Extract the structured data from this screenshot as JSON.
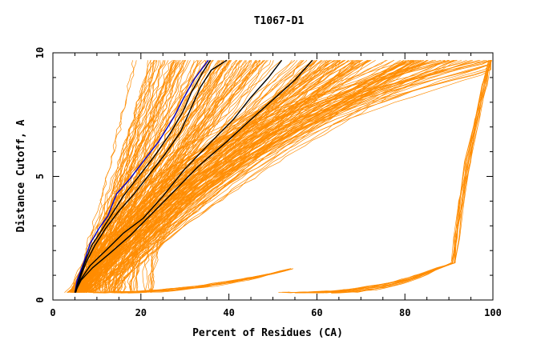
{
  "chart_data": {
    "type": "line",
    "title": "T1067-D1",
    "xlabel": "Percent of Residues (CA)",
    "ylabel": "Distance Cutoff, A",
    "xlim": [
      0,
      100
    ],
    "ylim": [
      0,
      10
    ],
    "x_ticks": [
      "0",
      "20",
      "40",
      "60",
      "80",
      "100"
    ],
    "y_ticks": [
      "0",
      "5",
      "10"
    ],
    "grid": false,
    "legend": "none",
    "colors": {
      "orange": "#ff8c00",
      "black": "#000000",
      "blue": "#0000cc"
    },
    "highlight_series": [
      {
        "color": "#0000cc",
        "points": [
          [
            5.0,
            0.3
          ],
          [
            5.5,
            0.8
          ],
          [
            7,
            1.5
          ],
          [
            8.5,
            2.3
          ],
          [
            10.5,
            2.9
          ],
          [
            12.5,
            3.4
          ],
          [
            14.5,
            4.3
          ],
          [
            17.5,
            4.9
          ],
          [
            20.5,
            5.6
          ],
          [
            24,
            6.4
          ],
          [
            27.5,
            7.4
          ],
          [
            29.5,
            8.1
          ],
          [
            32,
            8.9
          ],
          [
            35.3,
            9.7
          ]
        ]
      },
      {
        "color": "#000000",
        "points": [
          [
            5.0,
            0.3
          ],
          [
            5.8,
            0.8
          ],
          [
            7.2,
            1.5
          ],
          [
            8.8,
            2.2
          ],
          [
            11,
            2.8
          ],
          [
            13.5,
            3.5
          ],
          [
            16,
            4.2
          ],
          [
            19.5,
            5.0
          ],
          [
            23,
            5.8
          ],
          [
            26.5,
            6.7
          ],
          [
            29.5,
            7.6
          ],
          [
            31.5,
            8.4
          ],
          [
            34,
            9.2
          ],
          [
            35.8,
            9.7
          ]
        ]
      },
      {
        "color": "#000000",
        "points": [
          [
            5.2,
            0.3
          ],
          [
            6,
            0.8
          ],
          [
            7.5,
            1.5
          ],
          [
            9.5,
            2.2
          ],
          [
            12,
            2.9
          ],
          [
            15,
            3.6
          ],
          [
            18.5,
            4.3
          ],
          [
            22,
            5.1
          ],
          [
            25.5,
            5.9
          ],
          [
            29,
            6.8
          ],
          [
            31.5,
            7.8
          ],
          [
            33.5,
            8.6
          ],
          [
            36,
            9.3
          ],
          [
            39.5,
            9.7
          ]
        ]
      },
      {
        "color": "#000000",
        "points": [
          [
            5.0,
            0.3
          ],
          [
            6.2,
            0.8
          ],
          [
            8.5,
            1.4
          ],
          [
            12,
            2.0
          ],
          [
            16,
            2.7
          ],
          [
            20.5,
            3.3
          ],
          [
            25,
            4.2
          ],
          [
            30,
            5.3
          ],
          [
            36,
            6.4
          ],
          [
            41,
            7.3
          ],
          [
            45,
            8.2
          ],
          [
            49,
            9.0
          ],
          [
            52,
            9.7
          ]
        ]
      },
      {
        "color": "#000000",
        "points": [
          [
            5.0,
            0.3
          ],
          [
            6.4,
            0.8
          ],
          [
            9,
            1.3
          ],
          [
            13,
            1.9
          ],
          [
            17.5,
            2.6
          ],
          [
            22,
            3.4
          ],
          [
            27,
            4.3
          ],
          [
            33,
            5.4
          ],
          [
            39.5,
            6.4
          ],
          [
            45,
            7.3
          ],
          [
            50,
            8.1
          ],
          [
            55,
            8.9
          ],
          [
            59,
            9.7
          ]
        ]
      }
    ]
  }
}
